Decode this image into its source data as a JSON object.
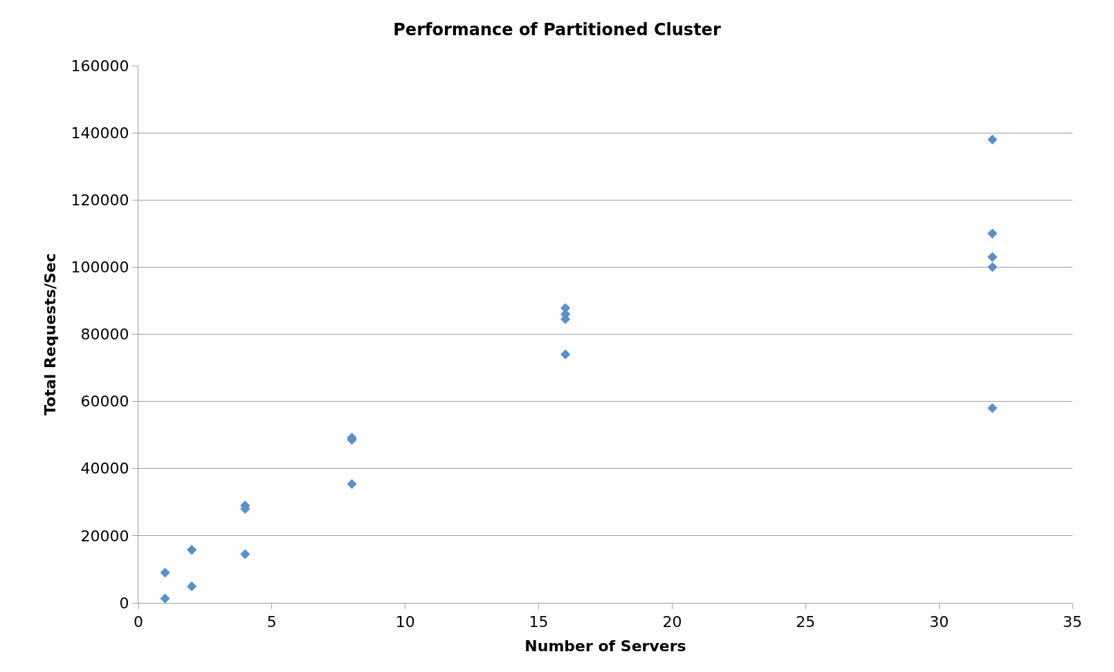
{
  "chart_data": {
    "type": "scatter",
    "title": "Performance of Partitioned Cluster",
    "xlabel": "Number of Servers",
    "ylabel": "Total Requests/Sec",
    "x": [
      1,
      1,
      2,
      2,
      4,
      4,
      4,
      8,
      8,
      8,
      16,
      16,
      16,
      16,
      32,
      32,
      32,
      32,
      32
    ],
    "values": [
      9000,
      1300,
      15800,
      4900,
      29000,
      28000,
      14500,
      49200,
      48600,
      35400,
      87800,
      86000,
      84500,
      74000,
      138000,
      110000,
      103000,
      100000,
      58000
    ],
    "color": "#5b8fc8",
    "marker": "diamond",
    "grid": "y",
    "xlim": [
      0,
      35
    ],
    "xticks": [
      0,
      5,
      10,
      15,
      20,
      25,
      30,
      35
    ],
    "ylim": [
      0,
      160000
    ],
    "yticks": [
      0,
      20000,
      40000,
      60000,
      80000,
      100000,
      120000,
      140000,
      160000
    ]
  }
}
